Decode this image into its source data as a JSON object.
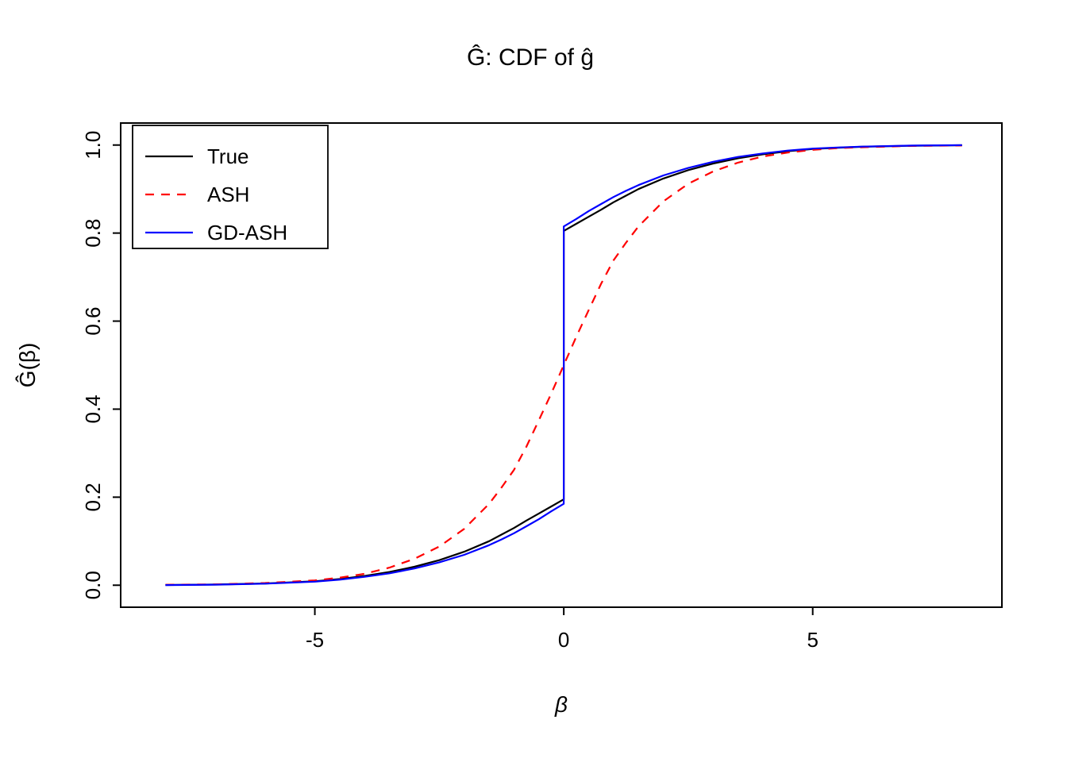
{
  "chart_data": {
    "type": "line",
    "title": "Ĝ: CDF of ĝ",
    "xlabel": "β",
    "ylabel": "Ĝ(β)",
    "xlim": [
      -8.9,
      8.8
    ],
    "ylim": [
      -0.05,
      1.05
    ],
    "grid": false,
    "legend_position": "top-left",
    "x_ticks": [
      {
        "value": -5,
        "label": "-5"
      },
      {
        "value": 0,
        "label": "0"
      },
      {
        "value": 5,
        "label": "5"
      }
    ],
    "y_ticks": [
      {
        "value": 0.0,
        "label": "0.0"
      },
      {
        "value": 0.2,
        "label": "0.2"
      },
      {
        "value": 0.4,
        "label": "0.4"
      },
      {
        "value": 0.6,
        "label": "0.6"
      },
      {
        "value": 0.8,
        "label": "0.8"
      },
      {
        "value": 1.0,
        "label": "1.0"
      }
    ],
    "series": [
      {
        "name": "True",
        "color": "#000000",
        "line_style": "solid",
        "points": [
          [
            -8,
            0.0005
          ],
          [
            -7,
            0.0015
          ],
          [
            -6,
            0.004
          ],
          [
            -5,
            0.009
          ],
          [
            -4.5,
            0.014
          ],
          [
            -4,
            0.021
          ],
          [
            -3.5,
            0.03
          ],
          [
            -3,
            0.042
          ],
          [
            -2.5,
            0.057
          ],
          [
            -2,
            0.076
          ],
          [
            -1.5,
            0.1
          ],
          [
            -1.25,
            0.115
          ],
          [
            -1,
            0.13
          ],
          [
            -0.75,
            0.147
          ],
          [
            -0.5,
            0.163
          ],
          [
            -0.25,
            0.179
          ],
          [
            0,
            0.195
          ],
          [
            0,
            0.805
          ],
          [
            0.25,
            0.821
          ],
          [
            0.5,
            0.837
          ],
          [
            0.75,
            0.853
          ],
          [
            1,
            0.87
          ],
          [
            1.25,
            0.885
          ],
          [
            1.5,
            0.9
          ],
          [
            2,
            0.924
          ],
          [
            2.5,
            0.943
          ],
          [
            3,
            0.958
          ],
          [
            3.5,
            0.97
          ],
          [
            4,
            0.979
          ],
          [
            4.5,
            0.986
          ],
          [
            5,
            0.991
          ],
          [
            5.5,
            0.994
          ],
          [
            6,
            0.996
          ],
          [
            7,
            0.9985
          ],
          [
            8,
            0.9995
          ]
        ]
      },
      {
        "name": "ASH",
        "color": "#FF0000",
        "line_style": "dashed",
        "points": [
          [
            -8,
            0.001
          ],
          [
            -7,
            0.002
          ],
          [
            -6,
            0.005
          ],
          [
            -5,
            0.011
          ],
          [
            -4.5,
            0.017
          ],
          [
            -4,
            0.026
          ],
          [
            -3.5,
            0.04
          ],
          [
            -3,
            0.06
          ],
          [
            -2.5,
            0.088
          ],
          [
            -2,
            0.128
          ],
          [
            -1.5,
            0.185
          ],
          [
            -1.25,
            0.222
          ],
          [
            -1,
            0.262
          ],
          [
            -0.75,
            0.315
          ],
          [
            -0.5,
            0.375
          ],
          [
            -0.25,
            0.436
          ],
          [
            0,
            0.5
          ],
          [
            0.25,
            0.564
          ],
          [
            0.5,
            0.625
          ],
          [
            0.75,
            0.685
          ],
          [
            1,
            0.738
          ],
          [
            1.25,
            0.778
          ],
          [
            1.5,
            0.815
          ],
          [
            2,
            0.872
          ],
          [
            2.5,
            0.912
          ],
          [
            3,
            0.94
          ],
          [
            3.5,
            0.96
          ],
          [
            4,
            0.974
          ],
          [
            4.5,
            0.983
          ],
          [
            5,
            0.989
          ],
          [
            5.5,
            0.993
          ],
          [
            6,
            0.995
          ],
          [
            7,
            0.998
          ],
          [
            8,
            0.999
          ]
        ]
      },
      {
        "name": "GD-ASH",
        "color": "#0000FF",
        "line_style": "solid",
        "points": [
          [
            -8,
            0.0004
          ],
          [
            -7,
            0.0013
          ],
          [
            -6,
            0.0035
          ],
          [
            -5,
            0.008
          ],
          [
            -4.5,
            0.0125
          ],
          [
            -4,
            0.019
          ],
          [
            -3.5,
            0.027
          ],
          [
            -3,
            0.038
          ],
          [
            -2.5,
            0.052
          ],
          [
            -2,
            0.069
          ],
          [
            -1.5,
            0.091
          ],
          [
            -1.25,
            0.104
          ],
          [
            -1,
            0.118
          ],
          [
            -0.75,
            0.134
          ],
          [
            -0.5,
            0.15
          ],
          [
            -0.25,
            0.168
          ],
          [
            0,
            0.185
          ],
          [
            0,
            0.815
          ],
          [
            0.25,
            0.832
          ],
          [
            0.5,
            0.85
          ],
          [
            0.75,
            0.866
          ],
          [
            1,
            0.882
          ],
          [
            1.25,
            0.896
          ],
          [
            1.5,
            0.909
          ],
          [
            2,
            0.931
          ],
          [
            2.5,
            0.948
          ],
          [
            3,
            0.962
          ],
          [
            3.5,
            0.973
          ],
          [
            4,
            0.981
          ],
          [
            4.5,
            0.9875
          ],
          [
            5,
            0.992
          ],
          [
            5.5,
            0.9945
          ],
          [
            6,
            0.9965
          ],
          [
            7,
            0.9987
          ],
          [
            8,
            0.9996
          ]
        ]
      }
    ]
  }
}
